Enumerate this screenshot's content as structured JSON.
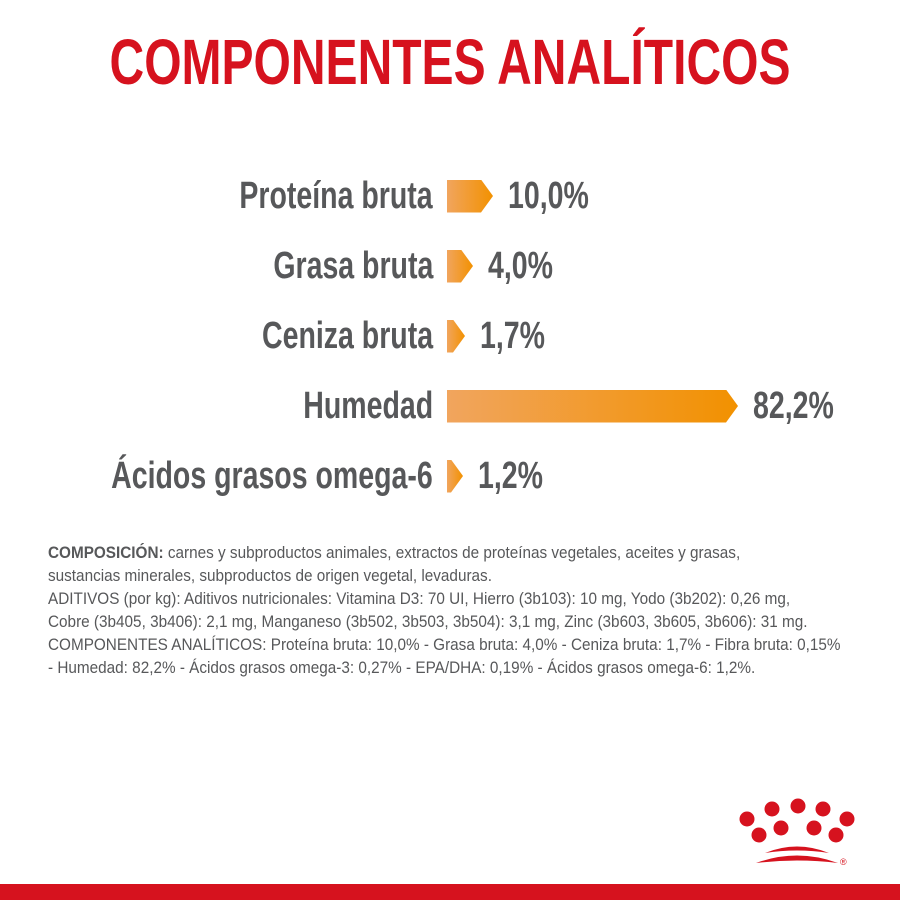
{
  "title": "COMPONENTES ANALÍTICOS",
  "colors": {
    "brand_red": "#D6121E",
    "bar_orange_light": "#F1A55E",
    "bar_orange_dark": "#F29100",
    "text_gray": "#57585A"
  },
  "chart_data": {
    "type": "bar",
    "orientation": "horizontal",
    "title": "COMPONENTES ANALÍTICOS",
    "categories": [
      "Proteína bruta",
      "Grasa bruta",
      "Ceniza bruta",
      "Humedad",
      "Ácidos grasos omega-6"
    ],
    "values": [
      10.0,
      4.0,
      1.7,
      82.2,
      1.2
    ],
    "value_labels": [
      "10,0%",
      "4,0%",
      "1,7%",
      "82,2%",
      "1,2%"
    ],
    "unit": "%",
    "xlim": [
      0,
      100
    ],
    "grid": false,
    "legend": false,
    "bar_style": "arrow-tip gradient orange"
  },
  "composition": {
    "lines": [
      {
        "bold": "COMPOSICIÓN:",
        "text": " carnes y subproductos animales, extractos de proteínas vegetales, aceites y grasas,"
      },
      {
        "bold": "",
        "text": "sustancias minerales, subproductos de origen vegetal, levaduras."
      },
      {
        "bold": "",
        "text": "ADITIVOS (por kg): Aditivos nutricionales: Vitamina D3: 70 UI, Hierro (3b103): 10 mg, Yodo (3b202): 0,26 mg,"
      },
      {
        "bold": "",
        "text": "Cobre (3b405, 3b406): 2,1 mg, Manganeso (3b502, 3b503, 3b504): 3,1 mg, Zinc (3b603, 3b605, 3b606): 31 mg."
      },
      {
        "bold": "",
        "text": "COMPONENTES ANALÍTICOS: Proteína bruta: 10,0% - Grasa bruta: 4,0% - Ceniza bruta: 1,7% - Fibra bruta: 0,15%"
      },
      {
        "bold": "",
        "text": "- Humedad: 82,2% - Ácidos grasos omega-3: 0,27% - EPA/DHA: 0,19% - Ácidos grasos omega-6: 1,2%."
      }
    ]
  },
  "footer": {
    "logo": "royal-canin-crown",
    "trademark": "®"
  }
}
